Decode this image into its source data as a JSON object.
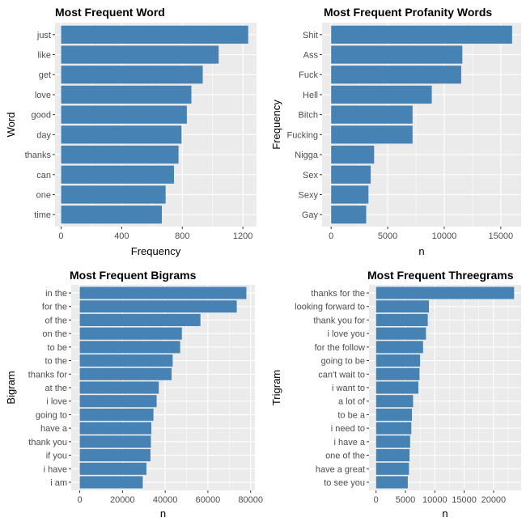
{
  "colors": {
    "bar": "#4682B4",
    "panel": "#EBEBEB",
    "grid": "#FFFFFF",
    "tick_text": "#4D4D4D"
  },
  "chart_data": [
    {
      "type": "bar",
      "orientation": "horizontal",
      "title": "Most Frequent Word",
      "xlabel": "Frequency",
      "ylabel": "Word",
      "categories": [
        "just",
        "like",
        "get",
        "love",
        "good",
        "day",
        "thanks",
        "can",
        "one",
        "time"
      ],
      "values": [
        1235,
        1040,
        935,
        860,
        830,
        795,
        775,
        745,
        690,
        665
      ],
      "xlim": [
        -40,
        1290
      ],
      "xticks": [
        0,
        400,
        800,
        1200
      ],
      "xtick_labels": [
        "0",
        "400",
        "800",
        "1200"
      ],
      "grid": true
    },
    {
      "type": "bar",
      "orientation": "horizontal",
      "title": "Most Frequent Profanity Words",
      "xlabel": "n",
      "ylabel": "Frequency",
      "categories": [
        "Shit",
        "Ass",
        "Fuck",
        "Hell",
        "Bitch",
        "Fucking",
        "Nigga",
        "Sex",
        "Sexy",
        "Gay"
      ],
      "values": [
        16000,
        11600,
        11500,
        8900,
        7200,
        7200,
        3800,
        3500,
        3300,
        3100
      ],
      "xlim": [
        -800,
        16800
      ],
      "xticks": [
        0,
        5000,
        10000,
        15000
      ],
      "xtick_labels": [
        "0",
        "5000",
        "10000",
        "15000"
      ],
      "grid": true
    },
    {
      "type": "bar",
      "orientation": "horizontal",
      "title": "Most Frequent Bigrams",
      "xlabel": "n",
      "ylabel": "Bigram",
      "categories": [
        "in the",
        "for the",
        "of the",
        "on the",
        "to be",
        "to the",
        "thanks for",
        "at the",
        "i love",
        "going to",
        "have a",
        "thank you",
        "if you",
        "i have",
        "i am"
      ],
      "values": [
        78000,
        73500,
        56500,
        47800,
        47000,
        43500,
        43000,
        37000,
        36000,
        34500,
        33500,
        33300,
        33100,
        31200,
        29500
      ],
      "xlim": [
        -4000,
        82000
      ],
      "xticks": [
        0,
        20000,
        40000,
        60000,
        80000
      ],
      "xtick_labels": [
        "0",
        "20000",
        "40000",
        "60000",
        "80000"
      ],
      "grid": true
    },
    {
      "type": "bar",
      "orientation": "horizontal",
      "title": "Most Frequent Threegrams",
      "xlabel": "n",
      "ylabel": "Trigram",
      "categories": [
        "thanks for the",
        "looking forward to",
        "thank you for",
        "i love you",
        "for the follow",
        "going to be",
        "can't wait to",
        "i want to",
        "a lot of",
        "to be a",
        "i need to",
        "i have a",
        "one of the",
        "have a great",
        "to see you"
      ],
      "values": [
        23500,
        9000,
        8800,
        8500,
        8000,
        7500,
        7400,
        7200,
        6300,
        6100,
        6000,
        5800,
        5700,
        5600,
        5400
      ],
      "xlim": [
        -1200,
        24700
      ],
      "xticks": [
        0,
        5000,
        10000,
        15000,
        20000
      ],
      "xtick_labels": [
        "0",
        "5000",
        "10000",
        "15000",
        "20000"
      ],
      "grid": true
    }
  ]
}
